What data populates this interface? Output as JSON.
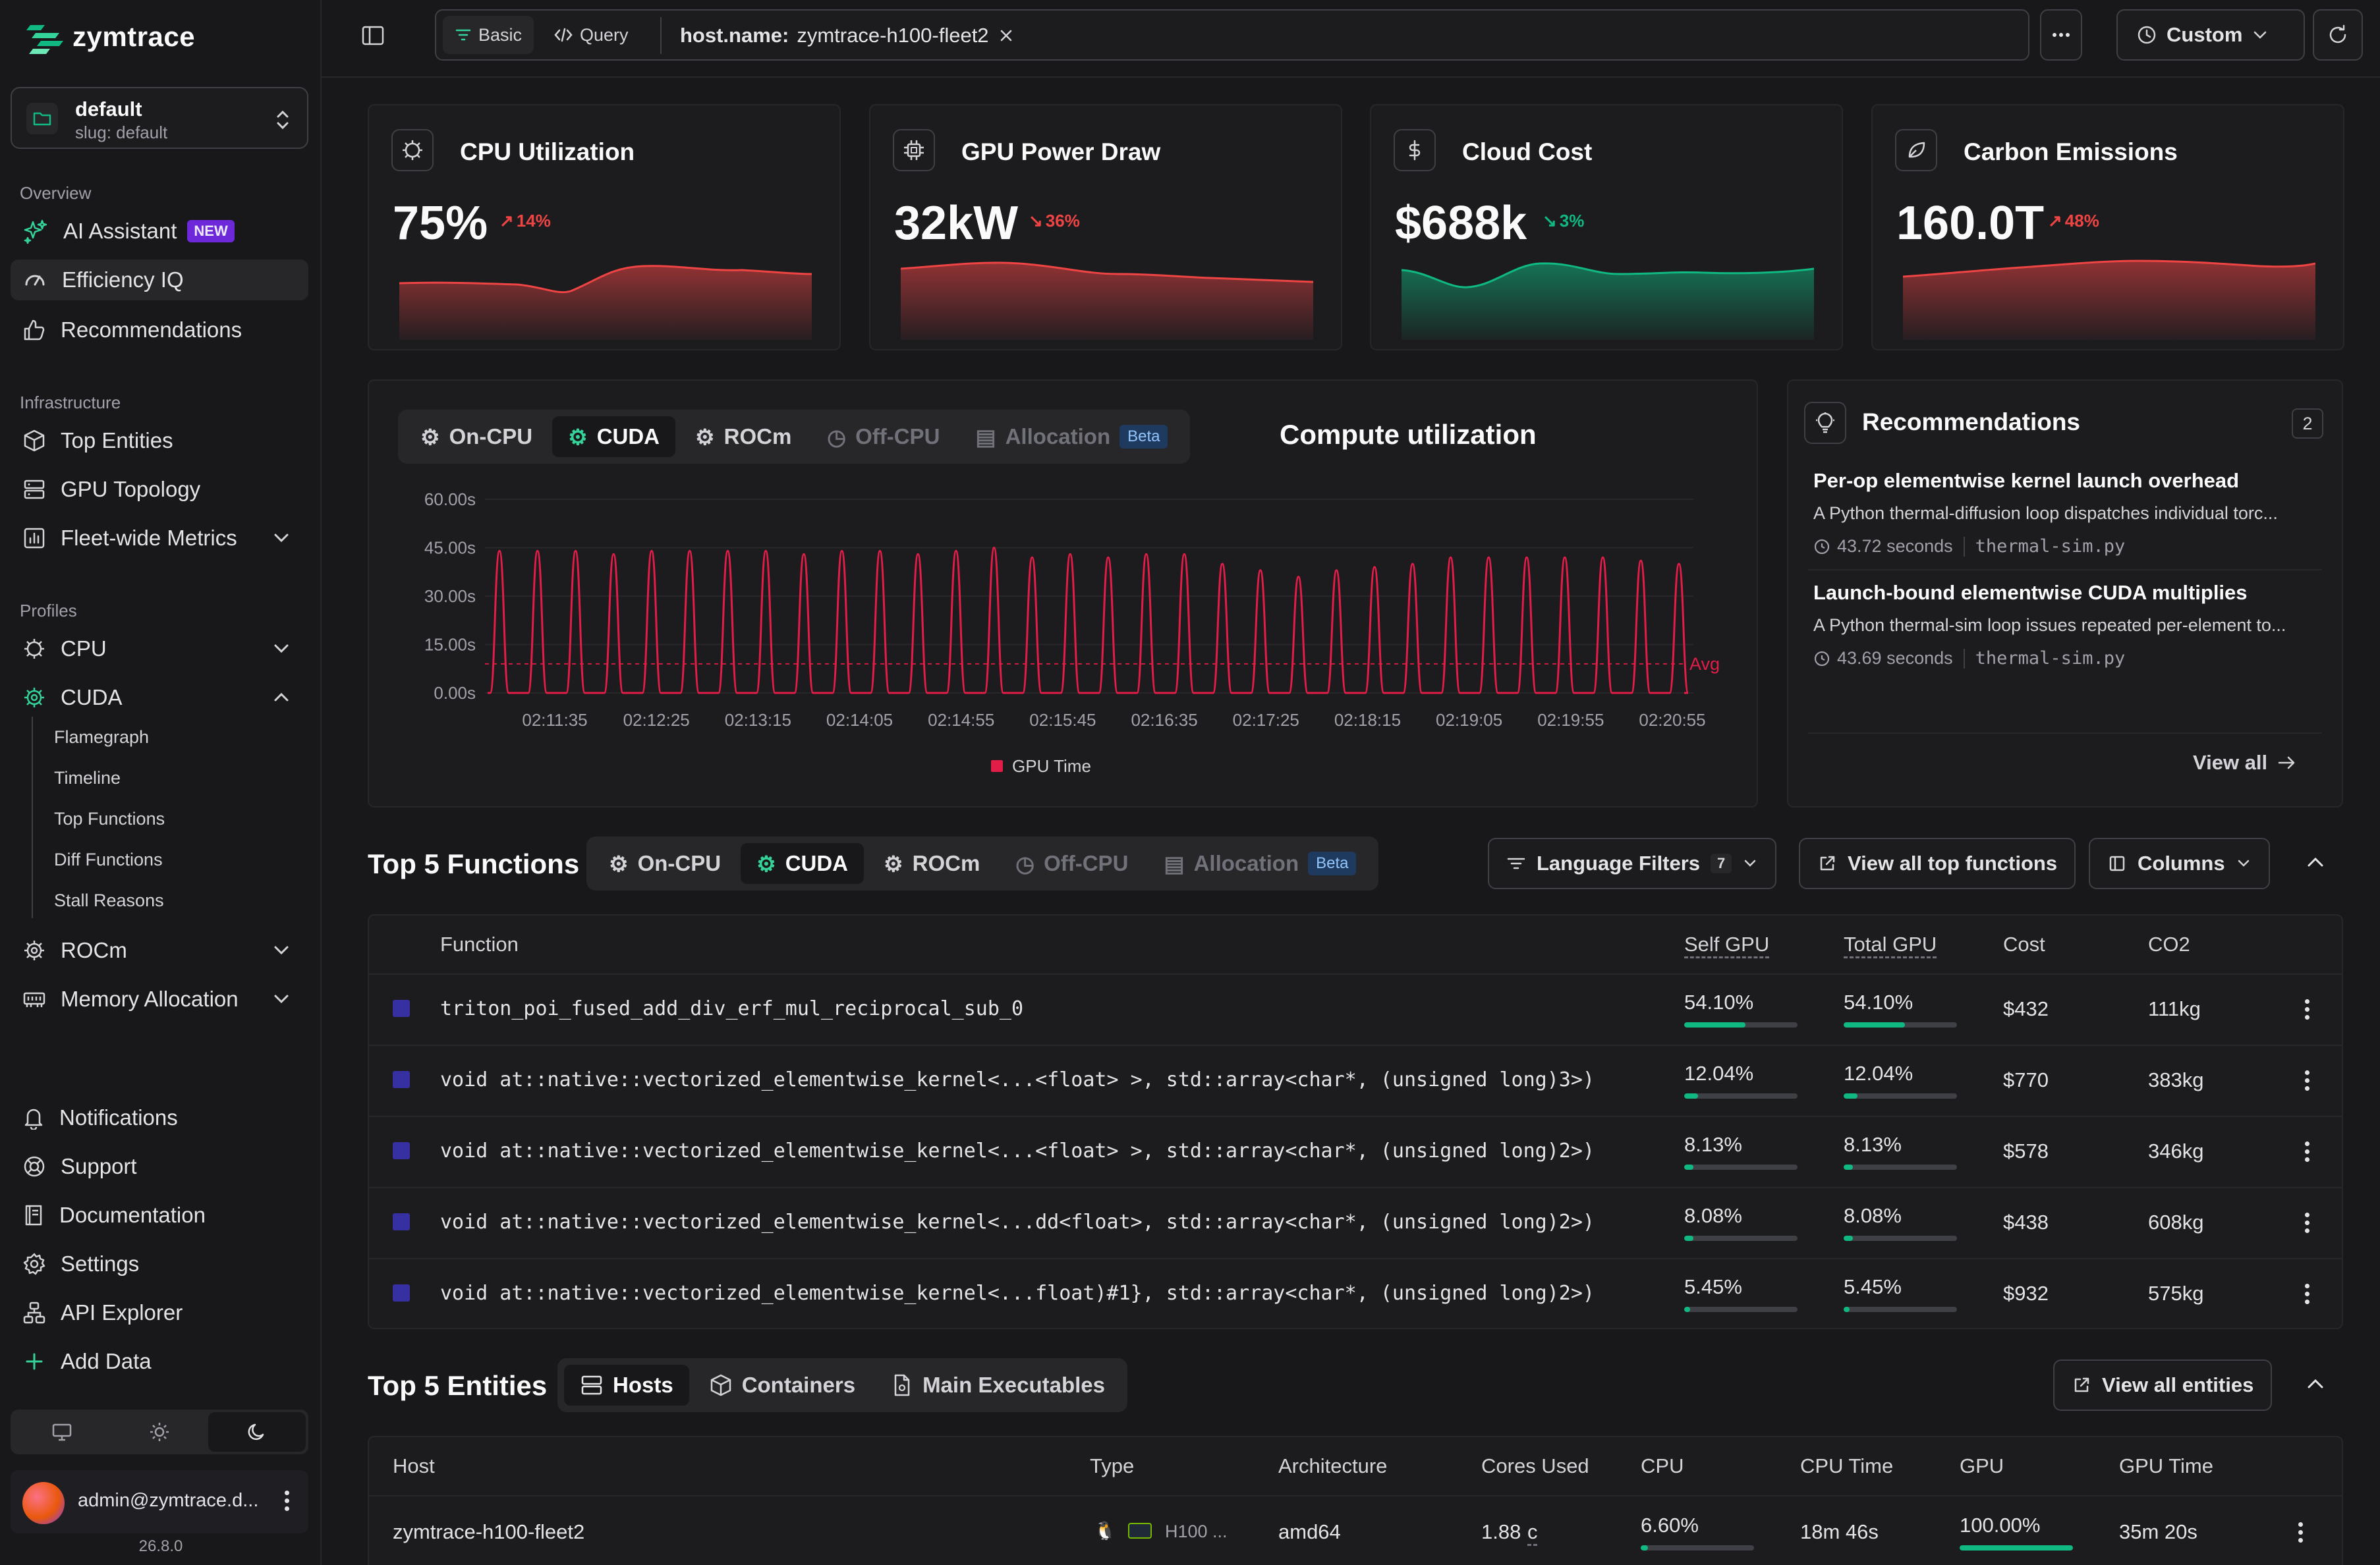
{
  "app": {
    "name": "zymtrace",
    "version": "26.8.0"
  },
  "workspace": {
    "name": "default",
    "slug": "slug: default"
  },
  "sidebar": {
    "overview_label": "Overview",
    "ai_assistant": "AI Assistant",
    "new_badge": "NEW",
    "efficiency_iq": "Efficiency IQ",
    "recommendations": "Recommendations",
    "infrastructure_label": "Infrastructure",
    "top_entities": "Top Entities",
    "gpu_topology": "GPU Topology",
    "fleet_metrics": "Fleet-wide Metrics",
    "profiles_label": "Profiles",
    "cpu": "CPU",
    "cuda": "CUDA",
    "cuda_sub": [
      "Flamegraph",
      "Timeline",
      "Top Functions",
      "Diff Functions",
      "Stall Reasons"
    ],
    "rocm": "ROCm",
    "memory_allocation": "Memory Allocation",
    "notifications": "Notifications",
    "support": "Support",
    "documentation": "Documentation",
    "settings": "Settings",
    "api_explorer": "API Explorer",
    "add_data": "Add Data",
    "user_email": "admin@zymtrace.d..."
  },
  "topbar": {
    "basic": "Basic",
    "query": "Query",
    "filter_key": "host.name:",
    "filter_value": "zymtrace-h100-fleet2",
    "time_range": "Custom"
  },
  "kpis": [
    {
      "title": "CPU Utilization",
      "value": "75%",
      "delta": "14%",
      "direction": "up",
      "color": "#ef4444"
    },
    {
      "title": "GPU Power Draw",
      "value": "32kW",
      "delta": "36%",
      "direction": "down",
      "color": "#ef4444"
    },
    {
      "title": "Cloud Cost",
      "value": "$688k",
      "delta": "3%",
      "direction": "down",
      "color": "#10b981"
    },
    {
      "title": "Carbon Emissions",
      "value": "160.0T",
      "delta": "48%",
      "direction": "up",
      "color": "#ef4444"
    }
  ],
  "profile_tabs": {
    "oncpu": "On-CPU",
    "cuda": "CUDA",
    "rocm": "ROCm",
    "offcpu": "Off-CPU",
    "allocation": "Allocation",
    "beta": "Beta"
  },
  "compute": {
    "title": "Compute utilization"
  },
  "chart_data": {
    "type": "line",
    "title": "Compute utilization",
    "ylabel": "",
    "ylim": [
      0,
      60
    ],
    "y_ticks": [
      "60.00s",
      "45.00s",
      "30.00s",
      "15.00s",
      "0.00s"
    ],
    "x_ticks": [
      "02:11:35",
      "02:12:25",
      "02:13:15",
      "02:14:05",
      "02:14:55",
      "02:15:45",
      "02:16:35",
      "02:17:25",
      "02:18:15",
      "02:19:05",
      "02:19:55",
      "02:20:55"
    ],
    "series": [
      {
        "name": "GPU Time",
        "color": "#e11d48",
        "peaks": [
          44,
          44,
          44,
          43,
          44,
          44,
          44,
          44,
          43,
          44,
          44,
          43,
          44,
          45,
          42,
          43,
          42,
          43,
          43,
          40,
          38,
          36,
          38,
          39,
          40,
          42,
          42,
          42,
          42,
          42,
          41,
          40
        ]
      }
    ],
    "avg": 9,
    "avg_label": "Avg"
  },
  "recommendations": {
    "title": "Recommendations",
    "count": "2",
    "items": [
      {
        "title": "Per-op elementwise kernel launch overhead",
        "desc": "A Python thermal-diffusion loop dispatches individual torc...",
        "time": "43.72 seconds",
        "file": "thermal-sim.py"
      },
      {
        "title": "Launch-bound elementwise CUDA multiplies",
        "desc": "A Python thermal-sim loop issues repeated per-element to...",
        "time": "43.69 seconds",
        "file": "thermal-sim.py"
      }
    ],
    "view_all": "View all"
  },
  "top_functions": {
    "title": "Top 5 Functions",
    "language_filters": "Language Filters",
    "language_count": "7",
    "view_all": "View all top functions",
    "columns": "Columns",
    "headers": {
      "function": "Function",
      "self_gpu": "Self GPU",
      "total_gpu": "Total GPU",
      "cost": "Cost",
      "co2": "CO2"
    },
    "rows": [
      {
        "name": "triton_poi_fused_add_div_erf_mul_reciprocal_sub_0",
        "self": "54.10%",
        "self_frac": 0.541,
        "total": "54.10%",
        "total_frac": 0.541,
        "cost": "$432",
        "co2": "111kg"
      },
      {
        "name": "void at::native::vectorized_elementwise_kernel<...<float> >, std::array<char*, (unsigned long)3>)",
        "self": "12.04%",
        "self_frac": 0.1204,
        "total": "12.04%",
        "total_frac": 0.1204,
        "cost": "$770",
        "co2": "383kg"
      },
      {
        "name": "void at::native::vectorized_elementwise_kernel<...<float> >, std::array<char*, (unsigned long)2>)",
        "self": "8.13%",
        "self_frac": 0.0813,
        "total": "8.13%",
        "total_frac": 0.0813,
        "cost": "$578",
        "co2": "346kg"
      },
      {
        "name": "void at::native::vectorized_elementwise_kernel<...dd<float>, std::array<char*, (unsigned long)2>)",
        "self": "8.08%",
        "self_frac": 0.0808,
        "total": "8.08%",
        "total_frac": 0.0808,
        "cost": "$438",
        "co2": "608kg"
      },
      {
        "name": "void at::native::vectorized_elementwise_kernel<...float)#1}, std::array<char*, (unsigned long)2>)",
        "self": "5.45%",
        "self_frac": 0.0545,
        "total": "5.45%",
        "total_frac": 0.0545,
        "cost": "$932",
        "co2": "575kg"
      }
    ]
  },
  "top_entities": {
    "title": "Top 5 Entities",
    "tabs": {
      "hosts": "Hosts",
      "containers": "Containers",
      "executables": "Main Executables"
    },
    "view_all": "View all entities",
    "headers": {
      "host": "Host",
      "type": "Type",
      "arch": "Architecture",
      "cores": "Cores Used",
      "cpu": "CPU",
      "cpu_time": "CPU Time",
      "gpu": "GPU",
      "gpu_time": "GPU Time"
    },
    "rows": [
      {
        "host": "zymtrace-h100-fleet2",
        "type": "H100 ...",
        "arch": "amd64",
        "cores": "1.88",
        "cores_unit": "c",
        "cpu": "6.60%",
        "cpu_frac": 0.066,
        "cpu_time": "18m 46s",
        "gpu": "100.00%",
        "gpu_frac": 1.0,
        "gpu_time": "35m 20s"
      }
    ]
  }
}
